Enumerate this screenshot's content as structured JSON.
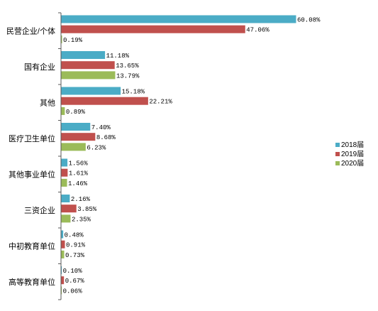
{
  "chart_data": {
    "type": "bar",
    "orientation": "horizontal",
    "categories": [
      "民营企业/个体",
      "国有企业",
      "其他",
      "医疗卫生单位",
      "其他事业单位",
      "三资企业",
      "中初教育单位",
      "高等教育单位"
    ],
    "series": [
      {
        "name": "2018届",
        "color": "#4bacc6",
        "values": [
          60.08,
          11.18,
          15.18,
          7.4,
          1.56,
          2.16,
          0.48,
          0.1
        ],
        "labels": [
          "60.08%",
          "11.18%",
          "15.18%",
          "7.40%",
          "1.56%",
          "2.16%",
          "0.48%",
          "0.10%"
        ]
      },
      {
        "name": "2019届",
        "color": "#c0504d",
        "values": [
          47.06,
          13.65,
          22.21,
          8.68,
          1.61,
          3.85,
          0.91,
          0.67
        ],
        "labels": [
          "47.06%",
          "13.65%",
          "22.21%",
          "8.68%",
          "1.61%",
          "3.85%",
          "0.91%",
          "0.67%"
        ]
      },
      {
        "name": "2020届",
        "color": "#9bbb59",
        "values": [
          0.19,
          13.79,
          0.89,
          6.23,
          1.46,
          2.35,
          0.73,
          0.06
        ],
        "labels": [
          "0.19%",
          "13.79%",
          "0.89%",
          "6.23%",
          "1.46%",
          "2.35%",
          "0.73%",
          "0.06%"
        ]
      }
    ],
    "xlim": [
      0,
      75
    ],
    "grid": false,
    "legend_position": "right"
  }
}
